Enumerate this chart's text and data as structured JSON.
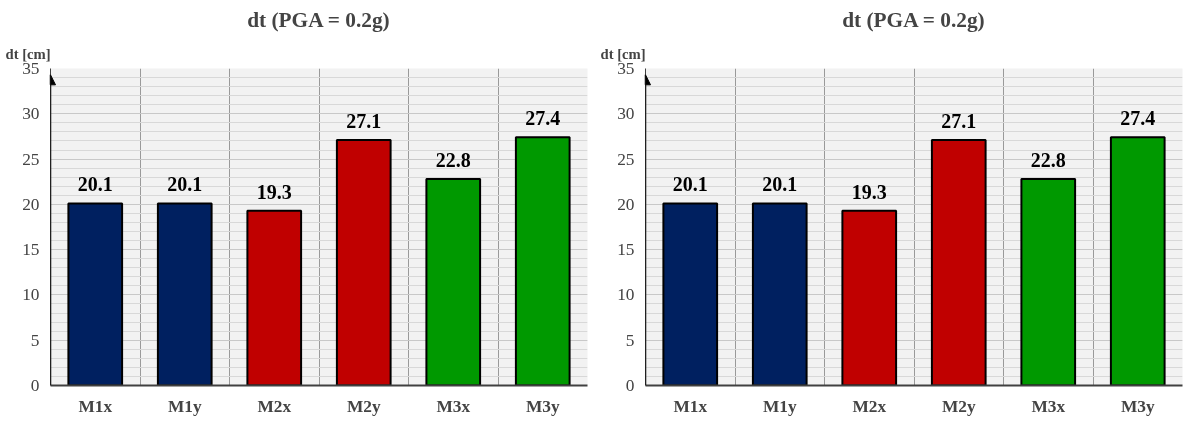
{
  "chart_data": [
    {
      "type": "bar",
      "title": "dt (PGA = 0.2g)",
      "ylabel": "dt [cm]",
      "categories": [
        "M1x",
        "M1y",
        "M2x",
        "M2y",
        "M3x",
        "M3y"
      ],
      "values": [
        20.1,
        20.1,
        19.3,
        27.1,
        22.8,
        27.4
      ],
      "colors": [
        "#002060",
        "#002060",
        "#c00000",
        "#c00000",
        "#009900",
        "#009900"
      ],
      "ylim": [
        0,
        35
      ],
      "yticks": [
        0,
        5,
        10,
        15,
        20,
        25,
        30,
        35
      ],
      "grid": true,
      "data_labels": true
    },
    {
      "type": "bar",
      "title": "dt (PGA = 0.2g)",
      "ylabel": "dt [cm]",
      "categories": [
        "M1x",
        "M1y",
        "M2x",
        "M2y",
        "M3x",
        "M3y"
      ],
      "values": [
        20.1,
        20.1,
        19.3,
        27.1,
        22.8,
        27.4
      ],
      "colors": [
        "#002060",
        "#002060",
        "#c00000",
        "#c00000",
        "#009900",
        "#009900"
      ],
      "ylim": [
        0,
        35
      ],
      "yticks": [
        0,
        5,
        10,
        15,
        20,
        25,
        30,
        35
      ],
      "grid": true,
      "data_labels": true
    }
  ]
}
